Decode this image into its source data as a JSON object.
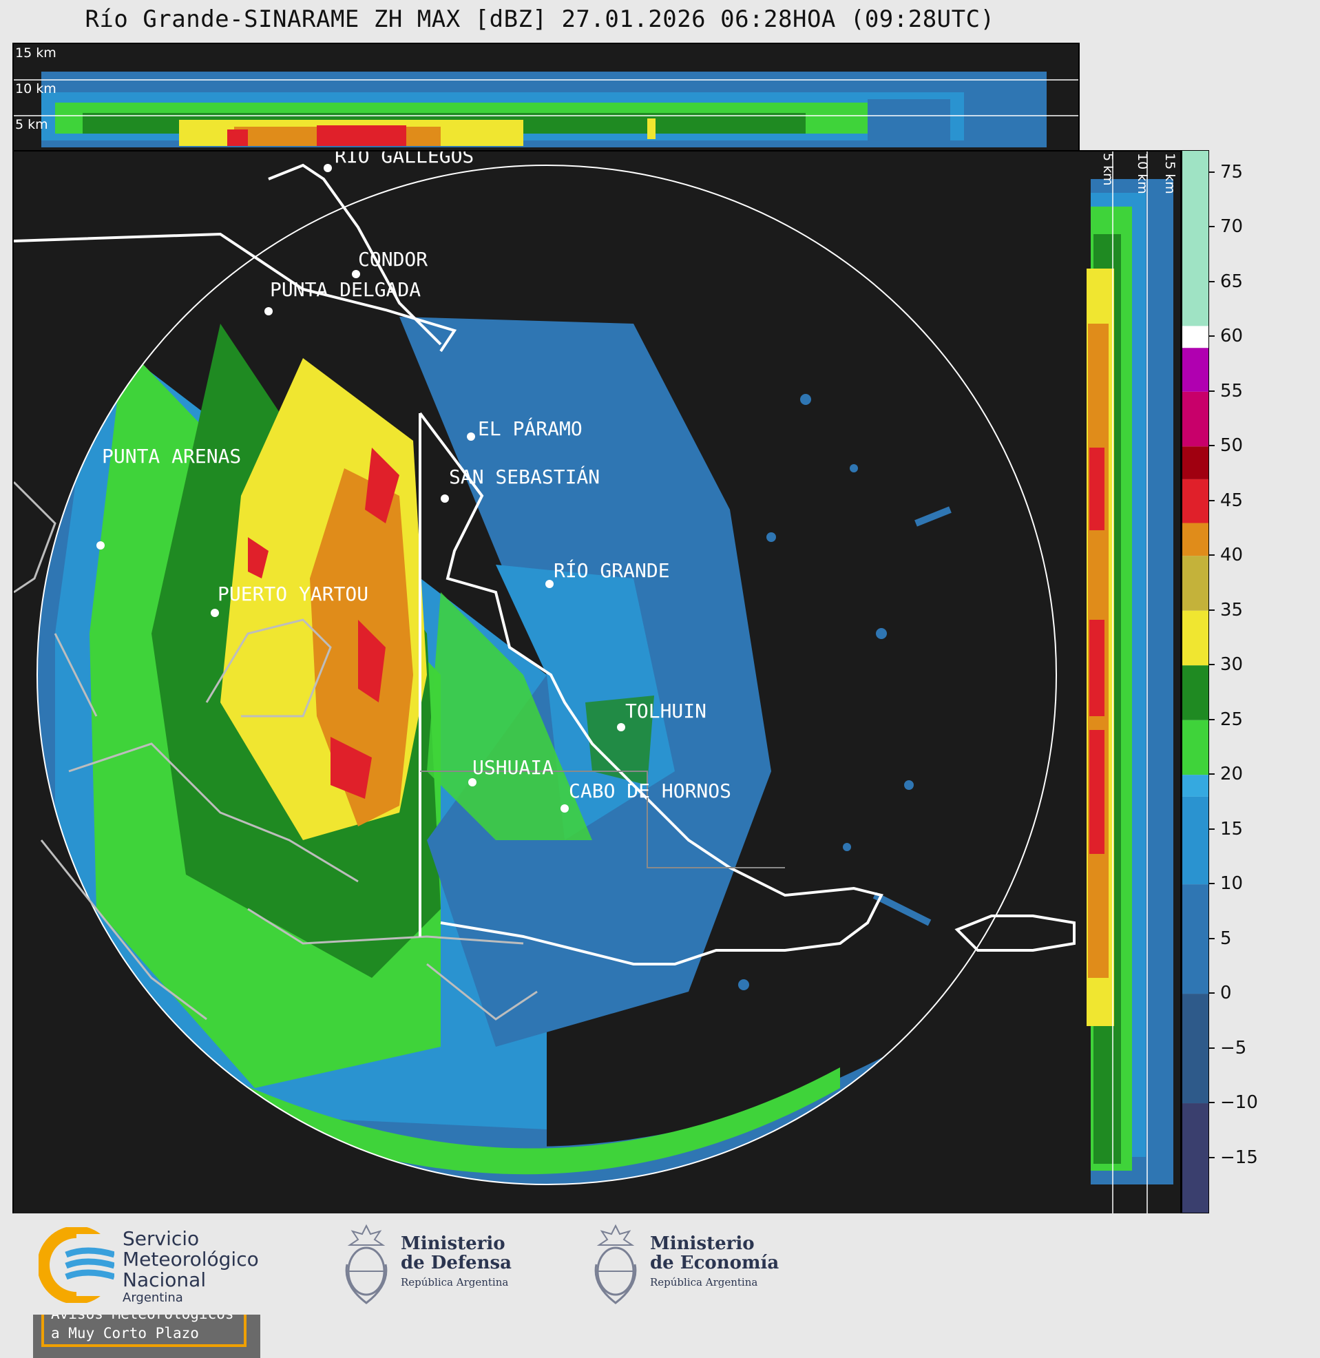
{
  "header": {
    "title": "Río Grande-SINARAME ZH MAX [dBZ] 27.01.2026 06:28HOA (09:28UTC)"
  },
  "altitude_labels": {
    "km15": "15 km",
    "km10": "10 km",
    "km5": "5 km"
  },
  "cities": [
    {
      "name": "RÍO GALLEGOS"
    },
    {
      "name": "CONDOR"
    },
    {
      "name": "PUNTA DELGADA"
    },
    {
      "name": "PUNTA ARENAS"
    },
    {
      "name": "EL PÁRAMO"
    },
    {
      "name": "SAN SEBASTIÁN"
    },
    {
      "name": "RÍO GRANDE"
    },
    {
      "name": "PUERTO YARTOU"
    },
    {
      "name": "TOLHUIN"
    },
    {
      "name": "USHUAIA"
    },
    {
      "name": "CABO DE HORNOS"
    }
  ],
  "colorbar": {
    "ticks": [
      "75",
      "70",
      "65",
      "60",
      "55",
      "50",
      "45",
      "40",
      "35",
      "30",
      "25",
      "20",
      "15",
      "10",
      "5",
      "0",
      "−5",
      "−10",
      "−15"
    ],
    "range": [
      -20,
      77
    ],
    "stops": [
      {
        "from": -20,
        "to": -10,
        "color": "#3a3f6e"
      },
      {
        "from": -10,
        "to": 0,
        "color": "#2e5a8a"
      },
      {
        "from": 0,
        "to": 10,
        "color": "#2f76b3"
      },
      {
        "from": 10,
        "to": 18,
        "color": "#2a93d0"
      },
      {
        "from": 18,
        "to": 20,
        "color": "#35a9e0"
      },
      {
        "from": 20,
        "to": 25,
        "color": "#3fd33a"
      },
      {
        "from": 25,
        "to": 30,
        "color": "#1f8a22"
      },
      {
        "from": 30,
        "to": 35,
        "color": "#f0e630"
      },
      {
        "from": 35,
        "to": 40,
        "color": "#c4b23a"
      },
      {
        "from": 40,
        "to": 43,
        "color": "#e08c1a"
      },
      {
        "from": 43,
        "to": 47,
        "color": "#e0202a"
      },
      {
        "from": 47,
        "to": 50,
        "color": "#a00010"
      },
      {
        "from": 50,
        "to": 55,
        "color": "#c8006a"
      },
      {
        "from": 55,
        "to": 59,
        "color": "#b000b0"
      },
      {
        "from": 59,
        "to": 61,
        "color": "#ffffff"
      },
      {
        "from": 61,
        "to": 77,
        "color": "#9fe3c4"
      }
    ]
  },
  "notice": {
    "line1": "Avisos Meteorológicos",
    "line2": "a Muy Corto Plazo"
  },
  "footer": {
    "smn": {
      "line1": "Servicio",
      "line2": "Meteorológico",
      "line3": "Nacional",
      "line4": "Argentina"
    },
    "defensa": {
      "line1": "Ministerio",
      "line2": "de Defensa",
      "line3": "República Argentina"
    },
    "economia": {
      "line1": "Ministerio",
      "line2": "de Economía",
      "line3": "República Argentina"
    }
  }
}
